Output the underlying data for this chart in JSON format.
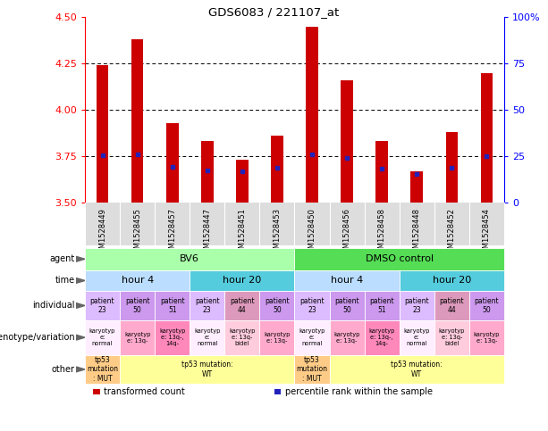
{
  "title": "GDS6083 / 221107_at",
  "samples": [
    "GSM1528449",
    "GSM1528455",
    "GSM1528457",
    "GSM1528447",
    "GSM1528451",
    "GSM1528453",
    "GSM1528450",
    "GSM1528456",
    "GSM1528458",
    "GSM1528448",
    "GSM1528452",
    "GSM1528454"
  ],
  "bar_values": [
    4.24,
    4.38,
    3.93,
    3.83,
    3.73,
    3.86,
    4.45,
    4.16,
    3.83,
    3.67,
    3.88,
    4.2
  ],
  "percentile_values": [
    3.753,
    3.76,
    3.692,
    3.672,
    3.668,
    3.69,
    3.762,
    3.742,
    3.682,
    3.655,
    3.69,
    3.752
  ],
  "ymin": 3.5,
  "ymax": 4.5,
  "yticks_left": [
    3.5,
    3.75,
    4.0,
    4.25,
    4.5
  ],
  "bar_color": "#cc0000",
  "percentile_color": "#2222bb",
  "gridline_values": [
    3.75,
    4.0,
    4.25
  ],
  "agent_spans": [
    {
      "label": "BV6",
      "cols": [
        0,
        1,
        2,
        3,
        4,
        5
      ],
      "color": "#aaffaa"
    },
    {
      "label": "DMSO control",
      "cols": [
        6,
        7,
        8,
        9,
        10,
        11
      ],
      "color": "#55dd55"
    }
  ],
  "time_spans": [
    {
      "label": "hour 4",
      "cols": [
        0,
        1,
        2
      ],
      "color": "#bbddff"
    },
    {
      "label": "hour 20",
      "cols": [
        3,
        4,
        5
      ],
      "color": "#55ccdd"
    },
    {
      "label": "hour 4",
      "cols": [
        6,
        7,
        8
      ],
      "color": "#bbddff"
    },
    {
      "label": "hour 20",
      "cols": [
        9,
        10,
        11
      ],
      "color": "#55ccdd"
    }
  ],
  "individual_data": [
    {
      "label": "patient\n23",
      "col": 0,
      "color": "#ddbbff"
    },
    {
      "label": "patient\n50",
      "col": 1,
      "color": "#cc99ee"
    },
    {
      "label": "patient\n51",
      "col": 2,
      "color": "#cc99ee"
    },
    {
      "label": "patient\n23",
      "col": 3,
      "color": "#ddbbff"
    },
    {
      "label": "patient\n44",
      "col": 4,
      "color": "#dd99bb"
    },
    {
      "label": "patient\n50",
      "col": 5,
      "color": "#cc99ee"
    },
    {
      "label": "patient\n23",
      "col": 6,
      "color": "#ddbbff"
    },
    {
      "label": "patient\n50",
      "col": 7,
      "color": "#cc99ee"
    },
    {
      "label": "patient\n51",
      "col": 8,
      "color": "#cc99ee"
    },
    {
      "label": "patient\n23",
      "col": 9,
      "color": "#ddbbff"
    },
    {
      "label": "patient\n44",
      "col": 10,
      "color": "#dd99bb"
    },
    {
      "label": "patient\n50",
      "col": 11,
      "color": "#cc99ee"
    }
  ],
  "genotype_data": [
    {
      "label": "karyotyp\ne:\nnormal",
      "col": 0,
      "color": "#ffeeff"
    },
    {
      "label": "karyotyp\ne: 13q-",
      "col": 1,
      "color": "#ffaacc"
    },
    {
      "label": "karyotyp\ne: 13q-,\n14q-",
      "col": 2,
      "color": "#ff88bb"
    },
    {
      "label": "karyotyp\ne:\nnormal",
      "col": 3,
      "color": "#ffeeff"
    },
    {
      "label": "karyotyp\ne: 13q-\nbidel",
      "col": 4,
      "color": "#ffccdd"
    },
    {
      "label": "karyotyp\ne: 13q-",
      "col": 5,
      "color": "#ffaacc"
    },
    {
      "label": "karyotyp\ne:\nnormal",
      "col": 6,
      "color": "#ffeeff"
    },
    {
      "label": "karyotyp\ne: 13q-",
      "col": 7,
      "color": "#ffaacc"
    },
    {
      "label": "karyotyp\ne: 13q-,\n14q-",
      "col": 8,
      "color": "#ff88bb"
    },
    {
      "label": "karyotyp\ne:\nnormal",
      "col": 9,
      "color": "#ffeeff"
    },
    {
      "label": "karyotyp\ne: 13q-\nbidel",
      "col": 10,
      "color": "#ffccdd"
    },
    {
      "label": "karyotyp\ne: 13q-",
      "col": 11,
      "color": "#ffaacc"
    }
  ],
  "other_spans": [
    {
      "label": "tp53\nmutation\n: MUT",
      "cols": [
        0
      ],
      "color": "#ffcc88"
    },
    {
      "label": "tp53 mutation:\nWT",
      "cols": [
        1,
        2,
        3,
        4,
        5
      ],
      "color": "#ffff99"
    },
    {
      "label": "tp53\nmutation\n: MUT",
      "cols": [
        6
      ],
      "color": "#ffcc88"
    },
    {
      "label": "tp53 mutation:\nWT",
      "cols": [
        7,
        8,
        9,
        10,
        11
      ],
      "color": "#ffff99"
    }
  ],
  "row_labels": [
    "agent",
    "time",
    "individual",
    "genotype/variation",
    "other"
  ],
  "legend_items": [
    {
      "label": "transformed count",
      "color": "#cc0000"
    },
    {
      "label": "percentile rank within the sample",
      "color": "#2222bb"
    }
  ]
}
